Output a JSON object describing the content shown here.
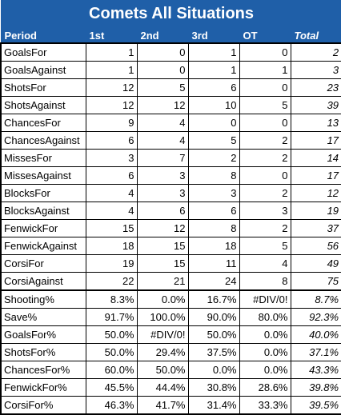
{
  "title": "Comets All Situations",
  "columns": [
    "Period",
    "1st",
    "2nd",
    "3rd",
    "OT",
    "Total"
  ],
  "count_rows": [
    {
      "label": "GoalsFor",
      "values": [
        "1",
        "0",
        "1",
        "0",
        "2"
      ]
    },
    {
      "label": "GoalsAgainst",
      "values": [
        "1",
        "0",
        "1",
        "1",
        "3"
      ]
    },
    {
      "label": "ShotsFor",
      "values": [
        "12",
        "5",
        "6",
        "0",
        "23"
      ]
    },
    {
      "label": "ShotsAgainst",
      "values": [
        "12",
        "12",
        "10",
        "5",
        "39"
      ]
    },
    {
      "label": "ChancesFor",
      "values": [
        "9",
        "4",
        "0",
        "0",
        "13"
      ]
    },
    {
      "label": "ChancesAgainst",
      "values": [
        "6",
        "4",
        "5",
        "2",
        "17"
      ]
    },
    {
      "label": "MissesFor",
      "values": [
        "3",
        "7",
        "2",
        "2",
        "14"
      ]
    },
    {
      "label": "MissesAgainst",
      "values": [
        "6",
        "3",
        "8",
        "0",
        "17"
      ]
    },
    {
      "label": "BlocksFor",
      "values": [
        "4",
        "3",
        "3",
        "2",
        "12"
      ]
    },
    {
      "label": "BlocksAgainst",
      "values": [
        "4",
        "6",
        "6",
        "3",
        "19"
      ]
    },
    {
      "label": "FenwickFor",
      "values": [
        "15",
        "12",
        "8",
        "2",
        "37"
      ]
    },
    {
      "label": "FenwickAgainst",
      "values": [
        "18",
        "15",
        "18",
        "5",
        "56"
      ]
    },
    {
      "label": "CorsiFor",
      "values": [
        "19",
        "15",
        "11",
        "4",
        "49"
      ]
    },
    {
      "label": "CorsiAgainst",
      "values": [
        "22",
        "21",
        "24",
        "8",
        "75"
      ]
    }
  ],
  "pct_rows": [
    {
      "label": "Shooting%",
      "values": [
        "8.3%",
        "0.0%",
        "16.7%",
        "#DIV/0!",
        "8.7%"
      ]
    },
    {
      "label": "Save%",
      "values": [
        "91.7%",
        "100.0%",
        "90.0%",
        "80.0%",
        "92.3%"
      ]
    },
    {
      "label": "GoalsFor%",
      "values": [
        "50.0%",
        "#DIV/0!",
        "50.0%",
        "0.0%",
        "40.0%"
      ]
    },
    {
      "label": "ShotsFor%",
      "values": [
        "50.0%",
        "29.4%",
        "37.5%",
        "0.0%",
        "37.1%"
      ]
    },
    {
      "label": "ChancesFor%",
      "values": [
        "60.0%",
        "50.0%",
        "0.0%",
        "0.0%",
        "43.3%"
      ]
    },
    {
      "label": "FenwickFor%",
      "values": [
        "45.5%",
        "44.4%",
        "30.8%",
        "28.6%",
        "39.8%"
      ]
    },
    {
      "label": "CorsiFor%",
      "values": [
        "46.3%",
        "41.7%",
        "31.4%",
        "33.3%",
        "39.5%"
      ]
    }
  ]
}
